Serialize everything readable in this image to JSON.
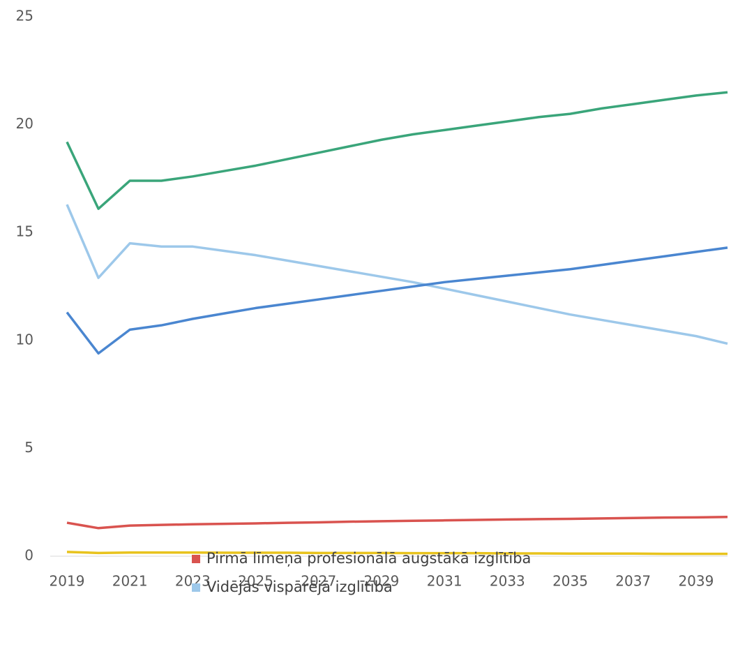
{
  "chart_data": {
    "type": "line",
    "x": [
      2019,
      2020,
      2021,
      2022,
      2023,
      2024,
      2025,
      2026,
      2027,
      2028,
      2029,
      2030,
      2031,
      2032,
      2033,
      2034,
      2035,
      2036,
      2037,
      2038,
      2039,
      2040
    ],
    "xlim": [
      2019,
      2040
    ],
    "xticks": [
      2019,
      2021,
      2023,
      2025,
      2027,
      2029,
      2031,
      2033,
      2035,
      2037,
      2039
    ],
    "ylim": [
      0,
      25
    ],
    "yticks": [
      0,
      5,
      10,
      15,
      20,
      25
    ],
    "grid": false,
    "legend": "bottom",
    "series": [
      {
        "color": "#3aa57a",
        "values": [
          19.2,
          16.1,
          17.4,
          17.4,
          17.6,
          17.85,
          18.1,
          18.4,
          18.7,
          19.0,
          19.3,
          19.55,
          19.75,
          19.95,
          20.15,
          20.35,
          20.5,
          20.75,
          20.95,
          21.15,
          21.35,
          21.5
        ]
      },
      {
        "name": "Vidējās vispārējā izglītība",
        "color": "#9dc8ea",
        "values": [
          16.3,
          12.9,
          14.5,
          14.35,
          14.35,
          14.15,
          13.95,
          13.7,
          13.45,
          13.2,
          12.95,
          12.7,
          12.4,
          12.1,
          11.8,
          11.5,
          11.2,
          10.95,
          10.7,
          10.45,
          10.2,
          9.85
        ]
      },
      {
        "color": "#4a86d0",
        "values": [
          11.3,
          9.4,
          10.5,
          10.7,
          11.0,
          11.25,
          11.5,
          11.7,
          11.9,
          12.1,
          12.3,
          12.5,
          12.7,
          12.85,
          13.0,
          13.15,
          13.3,
          13.5,
          13.7,
          13.9,
          14.1,
          14.3
        ]
      },
      {
        "name": "Pirmā līmeņa profesionālā augstākā izglītība",
        "color": "#d9534f",
        "values": [
          1.55,
          1.3,
          1.42,
          1.45,
          1.48,
          1.5,
          1.52,
          1.55,
          1.57,
          1.6,
          1.62,
          1.64,
          1.66,
          1.68,
          1.7,
          1.72,
          1.73,
          1.75,
          1.77,
          1.79,
          1.8,
          1.82
        ]
      },
      {
        "color": "#e8c31d",
        "values": [
          0.2,
          0.15,
          0.17,
          0.17,
          0.17,
          0.16,
          0.16,
          0.16,
          0.15,
          0.15,
          0.15,
          0.14,
          0.14,
          0.14,
          0.13,
          0.13,
          0.12,
          0.12,
          0.12,
          0.11,
          0.11,
          0.11
        ]
      }
    ]
  }
}
